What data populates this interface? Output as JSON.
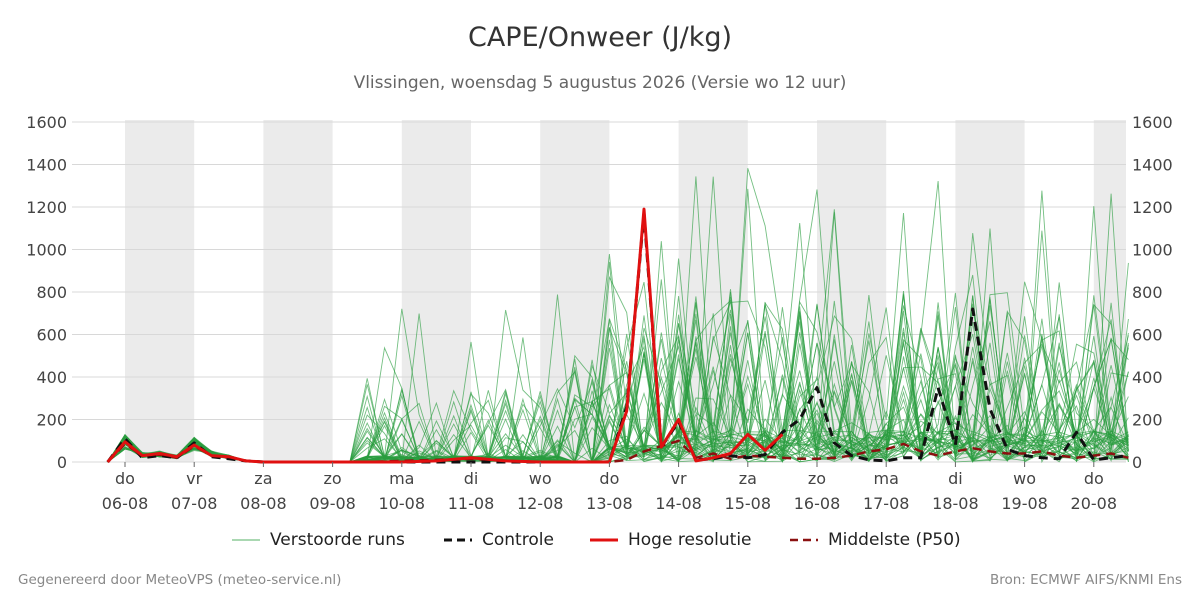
{
  "header": {
    "title": "CAPE/Onweer (J/kg)",
    "subtitle": "Vlissingen, woensdag  5 augustus 2026 (Versie wo 12 uur)"
  },
  "footer": {
    "left": "Gegenereerd door MeteoVPS (meteo-service.nl)",
    "right": "Bron: ECMWF AIFS/KNMI Ens"
  },
  "colors": {
    "ensemble": "#2a9d3f",
    "control": "#111111",
    "high_res": "#e01010",
    "median": "#8b1010",
    "weekend_band": "#ebebeb",
    "grid": "#d8d8d8"
  },
  "chart_data": {
    "type": "line",
    "title": "CAPE/Onweer (J/kg)",
    "xlabel": "",
    "ylabel": "",
    "ylim": [
      0,
      1600
    ],
    "yticks": [
      0,
      200,
      400,
      600,
      800,
      1000,
      1200,
      1400,
      1600
    ],
    "ytick_labels_left": [
      "0",
      "200",
      "400",
      "600",
      "800",
      "1000",
      "1200",
      "1400",
      "1600"
    ],
    "ytick_labels_right": [
      "0",
      "200",
      "400",
      "600",
      "800",
      "1000",
      "1200",
      "1400",
      "1600"
    ],
    "x_unit": "days from 06-08 midnight",
    "x_range": [
      -0.25,
      14.5
    ],
    "grid": true,
    "legend_position": "bottom",
    "xtick_days": [
      {
        "day": "do",
        "date": "06-08"
      },
      {
        "day": "vr",
        "date": "07-08"
      },
      {
        "day": "za",
        "date": "08-08"
      },
      {
        "day": "zo",
        "date": "09-08"
      },
      {
        "day": "ma",
        "date": "10-08"
      },
      {
        "day": "di",
        "date": "11-08"
      },
      {
        "day": "wo",
        "date": "12-08"
      },
      {
        "day": "do",
        "date": "13-08"
      },
      {
        "day": "vr",
        "date": "14-08"
      },
      {
        "day": "za",
        "date": "15-08"
      },
      {
        "day": "zo",
        "date": "16-08"
      },
      {
        "day": "ma",
        "date": "17-08"
      },
      {
        "day": "di",
        "date": "18-08"
      },
      {
        "day": "wo",
        "date": "19-08"
      },
      {
        "day": "do",
        "date": "20-08"
      }
    ],
    "shaded_bands": [
      [
        0,
        1
      ],
      [
        2,
        3
      ],
      [
        4,
        5
      ],
      [
        6,
        7
      ],
      [
        8,
        9
      ],
      [
        10,
        11
      ],
      [
        12,
        13
      ],
      [
        14,
        14.5
      ]
    ],
    "legend": [
      {
        "key": "ensemble",
        "label": "Verstoorde runs",
        "style": "thin-solid"
      },
      {
        "key": "control",
        "label": "Controle",
        "style": "dashed"
      },
      {
        "key": "high_res",
        "label": "Hoge resolutie",
        "style": "thick-solid"
      },
      {
        "key": "median",
        "label": "Middelste (P50)",
        "style": "dashed"
      }
    ],
    "series": [
      {
        "name": "Hoge resolutie",
        "key": "high_res",
        "x": [
          -0.25,
          0,
          0.25,
          0.5,
          0.75,
          1,
          1.25,
          1.5,
          1.75,
          2,
          2.5,
          3,
          3.5,
          4,
          4.5,
          5,
          5.5,
          6,
          6.5,
          7,
          7.25,
          7.5,
          7.75,
          8,
          8.25,
          8.5,
          8.75,
          9,
          9.25,
          9.5
        ],
        "y": [
          0,
          95,
          30,
          40,
          25,
          80,
          30,
          25,
          5,
          0,
          0,
          0,
          0,
          0,
          5,
          20,
          5,
          0,
          0,
          0,
          240,
          1190,
          70,
          200,
          5,
          20,
          40,
          130,
          55,
          130
        ]
      },
      {
        "name": "Controle",
        "key": "control",
        "x": [
          -0.25,
          0,
          0.25,
          0.5,
          0.75,
          1,
          1.25,
          1.5,
          1.75,
          2,
          2.5,
          3,
          3.5,
          4,
          4.5,
          5,
          5.5,
          6,
          6.5,
          7,
          7.25,
          7.5,
          7.75,
          8,
          8.25,
          8.5,
          8.75,
          9,
          9.25,
          9.5,
          9.75,
          10,
          10.25,
          10.5,
          10.75,
          11,
          11.25,
          11.5,
          11.75,
          12,
          12.25,
          12.5,
          12.75,
          13,
          13.25,
          13.5,
          13.75,
          14,
          14.25,
          14.5
        ],
        "y": [
          0,
          110,
          20,
          30,
          20,
          90,
          25,
          15,
          5,
          0,
          0,
          0,
          0,
          0,
          0,
          0,
          0,
          0,
          0,
          0,
          260,
          1170,
          70,
          190,
          10,
          15,
          30,
          20,
          35,
          140,
          200,
          350,
          90,
          30,
          10,
          5,
          20,
          20,
          350,
          80,
          720,
          250,
          60,
          30,
          20,
          15,
          140,
          10,
          20,
          30
        ]
      },
      {
        "name": "Middelste (P50)",
        "key": "median",
        "x": [
          -0.25,
          0,
          0.25,
          0.5,
          0.75,
          1,
          1.25,
          1.5,
          1.75,
          2,
          2.5,
          3,
          3.5,
          4,
          4.5,
          5,
          5.5,
          6,
          6.5,
          7,
          7.25,
          7.5,
          7.75,
          8,
          8.25,
          8.5,
          8.75,
          9,
          9.25,
          9.5,
          9.75,
          10,
          10.25,
          10.5,
          10.75,
          11,
          11.25,
          11.5,
          11.75,
          12,
          12.25,
          12.5,
          12.75,
          13,
          13.25,
          13.5,
          13.75,
          14,
          14.25,
          14.5
        ],
        "y": [
          0,
          85,
          30,
          35,
          20,
          75,
          30,
          20,
          5,
          0,
          0,
          0,
          0,
          5,
          10,
          15,
          5,
          0,
          0,
          0,
          10,
          50,
          75,
          100,
          20,
          40,
          15,
          30,
          25,
          20,
          15,
          15,
          20,
          30,
          50,
          60,
          85,
          50,
          30,
          50,
          65,
          50,
          40,
          40,
          50,
          30,
          20,
          30,
          40,
          20
        ]
      }
    ]
  }
}
